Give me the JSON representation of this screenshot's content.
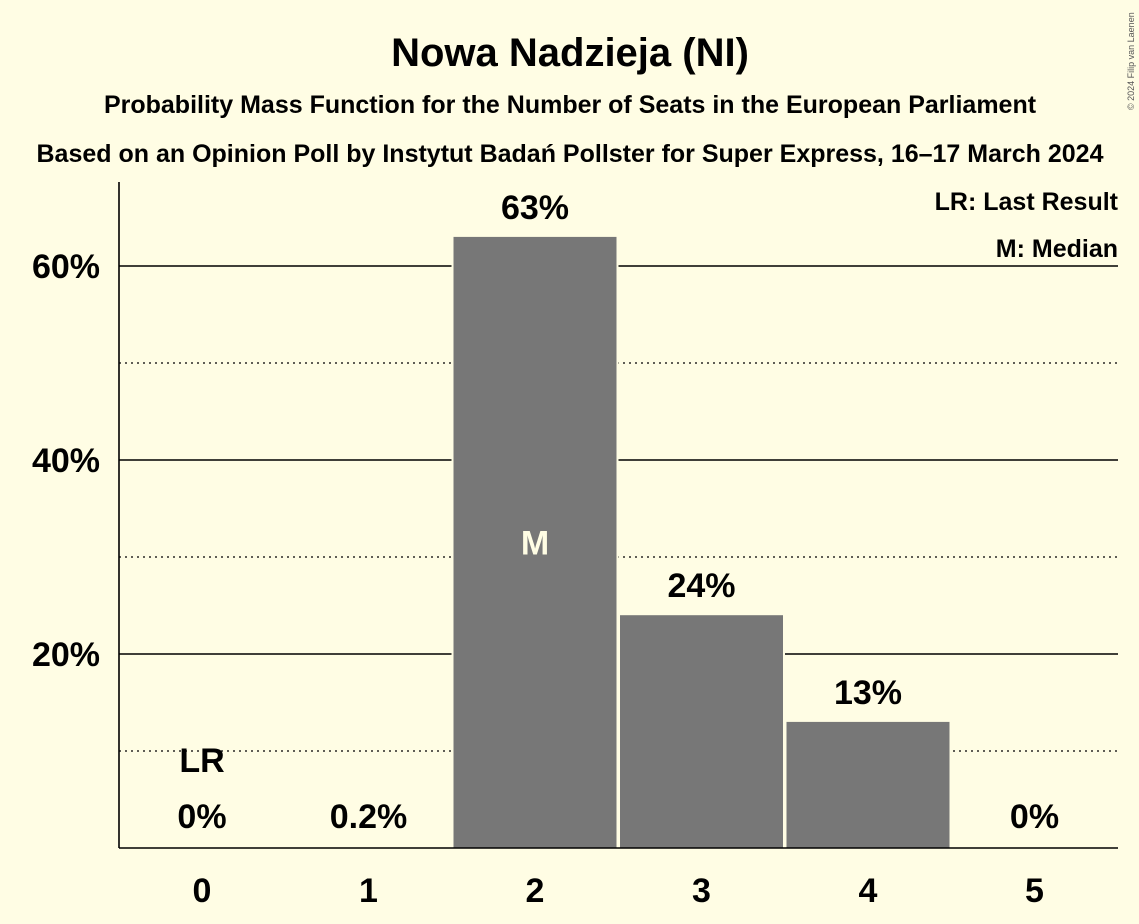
{
  "title": "Nowa Nadzieja (NI)",
  "subtitle_1": "Probability Mass Function for the Number of Seats in the European Parliament",
  "subtitle_2": "Based on an Opinion Poll by Instytut Badań Pollster for Super Express, 16–17 March 2024",
  "copyright": "© 2024 Filip van Laenen",
  "legend": {
    "last_result": "LR: Last Result",
    "median": "M: Median"
  },
  "colors": {
    "background": "#FFFDE4",
    "bar": "#777777",
    "axis": "#000000"
  },
  "chart_data": {
    "type": "bar",
    "categories": [
      "0",
      "1",
      "2",
      "3",
      "4",
      "5"
    ],
    "values": [
      0,
      0.2,
      63,
      24,
      13,
      0
    ],
    "data_labels": [
      "0%",
      "0.2%",
      "63%",
      "24%",
      "13%",
      "0%"
    ],
    "ylim": [
      0,
      68
    ],
    "y_ticks": [
      20,
      40,
      60
    ],
    "y_tick_labels": [
      "20%",
      "40%",
      "60%"
    ],
    "y_minor_ticks": [
      10,
      30,
      50
    ],
    "median_index": 2,
    "median_marker": "M",
    "last_result_index": 0,
    "last_result_marker": "LR",
    "grid": true,
    "legend_position": "top-right"
  }
}
